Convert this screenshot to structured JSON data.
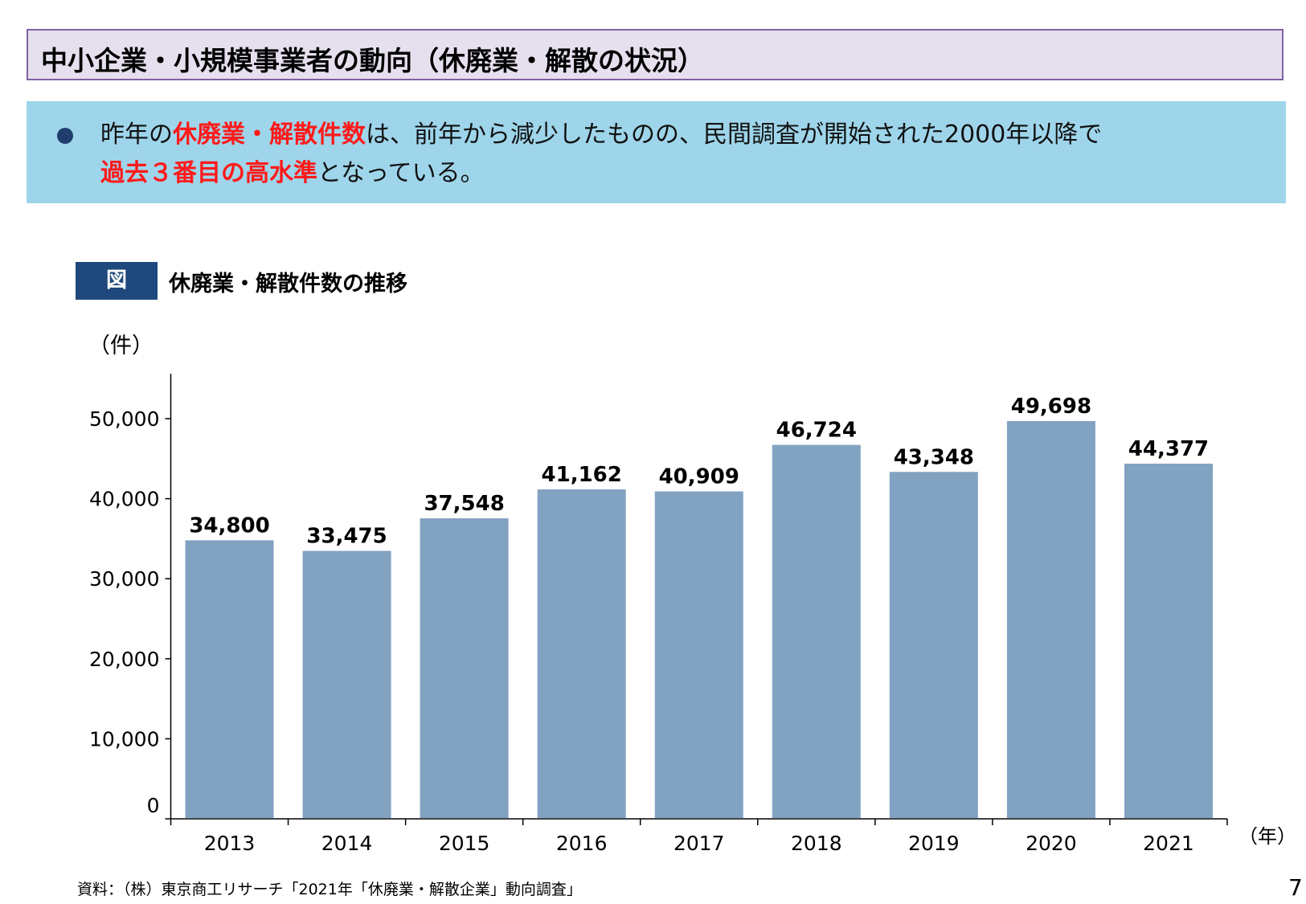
{
  "header": {
    "title": "中小企業・小規模事業者の動向（休廃業・解散の状況）"
  },
  "summary": {
    "line1_pre": "昨年の",
    "line1_em": "休廃業・解散件数",
    "line1_post": "は、前年から減少したものの、民間調査が開始された2000年以降で",
    "line2_em": "過去３番目の高水準",
    "line2_post": "となっている。"
  },
  "figure": {
    "badge": "図",
    "title": "休廃業・解散件数の推移"
  },
  "footer": {
    "source": "資料：（株）東京商工リサーチ「2021年「休廃業・解散企業」動向調査」",
    "page": "7"
  },
  "colors": {
    "bar": "#82a2c2",
    "accent_red": "#ff1a1a",
    "title_border": "#7f62a2",
    "summary_bg": "#9ed5ea",
    "badge_bg": "#1f497d"
  },
  "chart_data": {
    "type": "bar",
    "title": "休廃業・解散件数の推移",
    "ylabel": "（件）",
    "xlabel": "（年）",
    "categories": [
      "2013",
      "2014",
      "2015",
      "2016",
      "2017",
      "2018",
      "2019",
      "2020",
      "2021"
    ],
    "values": [
      34800,
      33475,
      37548,
      41162,
      40909,
      46724,
      43348,
      49698,
      44377
    ],
    "value_labels": [
      "34,800",
      "33,475",
      "37,548",
      "41,162",
      "40,909",
      "46,724",
      "43,348",
      "49,698",
      "44,377"
    ],
    "yticks": [
      0,
      10000,
      20000,
      30000,
      40000,
      50000
    ],
    "ytick_labels": [
      "0",
      "10,000",
      "20,000",
      "30,000",
      "40,000",
      "50,000"
    ],
    "ylim": [
      0,
      55000
    ],
    "grid": false,
    "legend": "none"
  }
}
